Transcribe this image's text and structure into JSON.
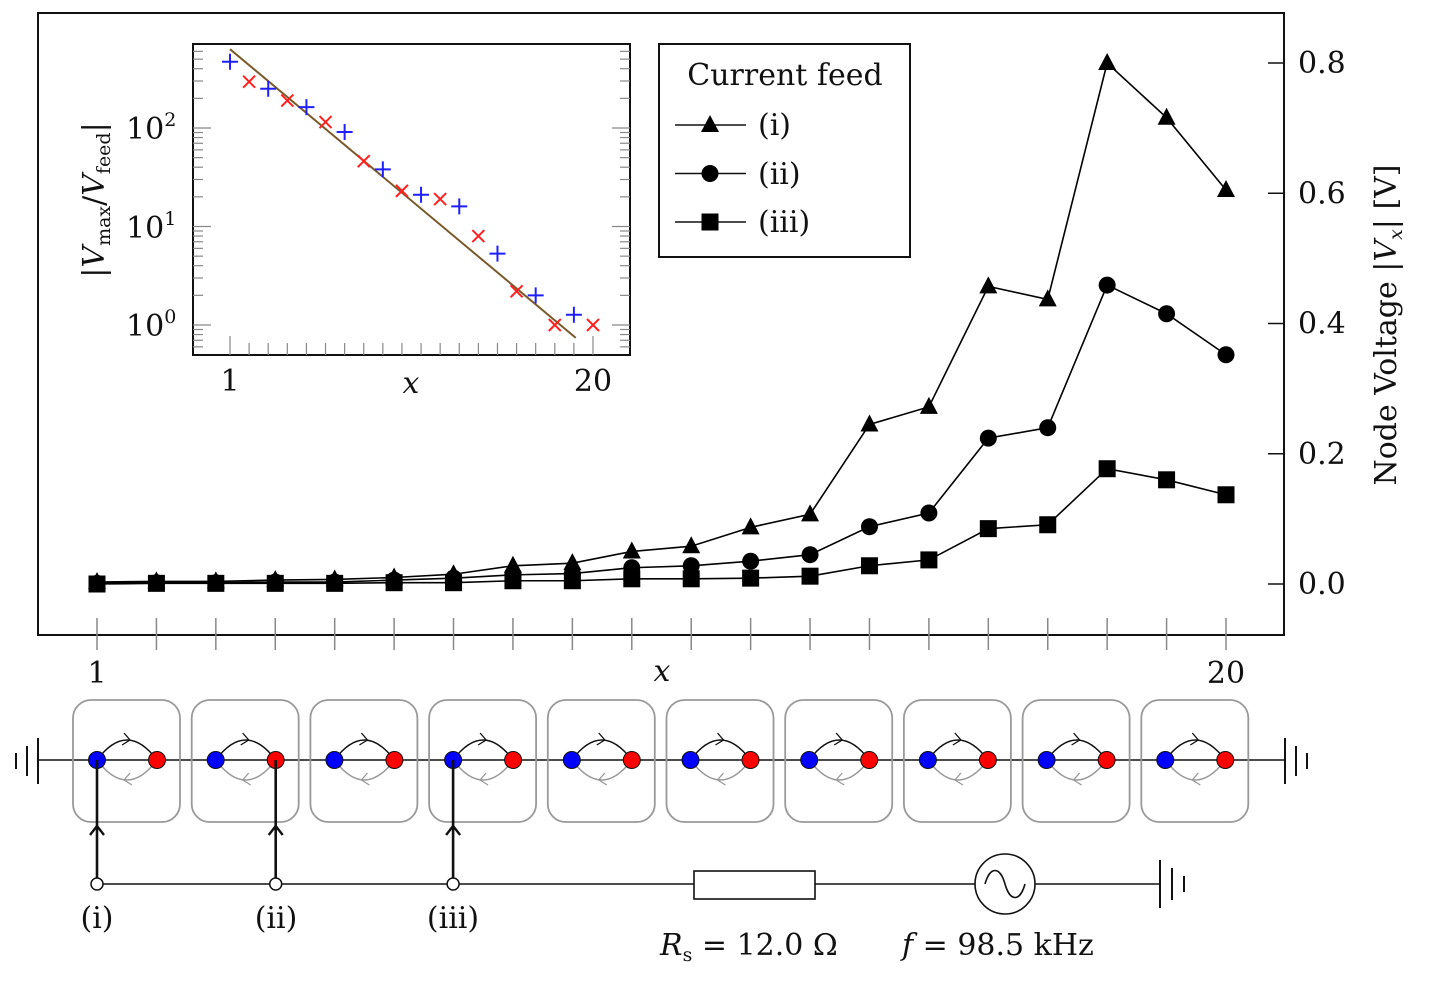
{
  "chart_data": [
    {
      "type": "line",
      "xlabel": "x",
      "ylabel_parts": [
        "Node Voltage |",
        "V",
        "x",
        "| [V]"
      ],
      "x": [
        1,
        2,
        3,
        4,
        5,
        6,
        7,
        8,
        9,
        10,
        11,
        12,
        13,
        14,
        15,
        16,
        17,
        18,
        19,
        20
      ],
      "xtick_labels": [
        "1",
        "20"
      ],
      "xlim": [
        1,
        20
      ],
      "ylim": [
        -0.08,
        0.88
      ],
      "yticks": [
        0.0,
        0.2,
        0.4,
        0.6,
        0.8
      ],
      "ytick_labels": [
        "0.0",
        "0.2",
        "0.4",
        "0.6",
        "0.8"
      ],
      "y_axis_side": "right",
      "grid": false,
      "legend": {
        "title": "Current feed",
        "placement": "top-center"
      },
      "series": [
        {
          "name": "(i)",
          "marker": "triangle",
          "color": "#000000",
          "values": [
            0.003,
            0.004,
            0.004,
            0.006,
            0.007,
            0.01,
            0.015,
            0.028,
            0.032,
            0.05,
            0.058,
            0.087,
            0.107,
            0.245,
            0.272,
            0.457,
            0.437,
            0.8,
            0.716,
            0.605
          ]
        },
        {
          "name": "(ii)",
          "marker": "circle",
          "color": "#000000",
          "values": [
            0.001,
            0.002,
            0.002,
            0.003,
            0.003,
            0.006,
            0.009,
            0.014,
            0.016,
            0.025,
            0.028,
            0.035,
            0.045,
            0.088,
            0.109,
            0.224,
            0.24,
            0.459,
            0.415,
            0.352
          ]
        },
        {
          "name": "(iii)",
          "marker": "square",
          "color": "#000000",
          "values": [
            0.0,
            0.001,
            0.001,
            0.001,
            0.001,
            0.002,
            0.002,
            0.005,
            0.005,
            0.008,
            0.008,
            0.009,
            0.012,
            0.028,
            0.037,
            0.085,
            0.091,
            0.177,
            0.16,
            0.137
          ]
        }
      ]
    },
    {
      "type": "scatter",
      "inset": true,
      "xlabel": "x",
      "ylabel_parts": [
        "|",
        "V",
        "max",
        "/",
        "V",
        "feed",
        "|"
      ],
      "xtick_labels": [
        "1",
        "20"
      ],
      "xlim": [
        0.2,
        21.3
      ],
      "y_scale": "log",
      "ylim": [
        0.3,
        1000
      ],
      "ytick_labels": [
        {
          "base": "10",
          "exp": "2"
        },
        {
          "base": "10",
          "exp": "1"
        },
        {
          "base": "10",
          "exp": "0"
        }
      ],
      "series": [
        {
          "marker": "plus",
          "color": "#1f1fff",
          "x": [
            1,
            3,
            5,
            7,
            9,
            11,
            13,
            15,
            17,
            19
          ],
          "values": [
            470,
            250,
            163,
            91,
            38,
            21,
            16,
            5.3,
            2.0,
            1.27
          ]
        },
        {
          "marker": "cross",
          "color": "#ff2020",
          "x": [
            2,
            4,
            6,
            8,
            10,
            12,
            14,
            16,
            18,
            20
          ],
          "values": [
            295,
            190,
            115,
            46,
            23,
            19,
            8,
            2.2,
            1.0,
            1.0
          ]
        }
      ],
      "fit_line": {
        "color": "#7a5a2a",
        "x": [
          1,
          19.1
        ],
        "values": [
          631,
          0.74
        ]
      }
    }
  ],
  "circuit": {
    "cell_count": 10,
    "node_colors": {
      "a": "#0000ff",
      "b": "#ff0000"
    },
    "feed_labels": [
      "(i)",
      "(ii)",
      "(iii)"
    ],
    "resistor_label": {
      "sym": "R",
      "sub": "s",
      "value": " = 12.0 Ω"
    },
    "source_label": {
      "sym": "f",
      "value": " = 98.5 kHz"
    }
  }
}
